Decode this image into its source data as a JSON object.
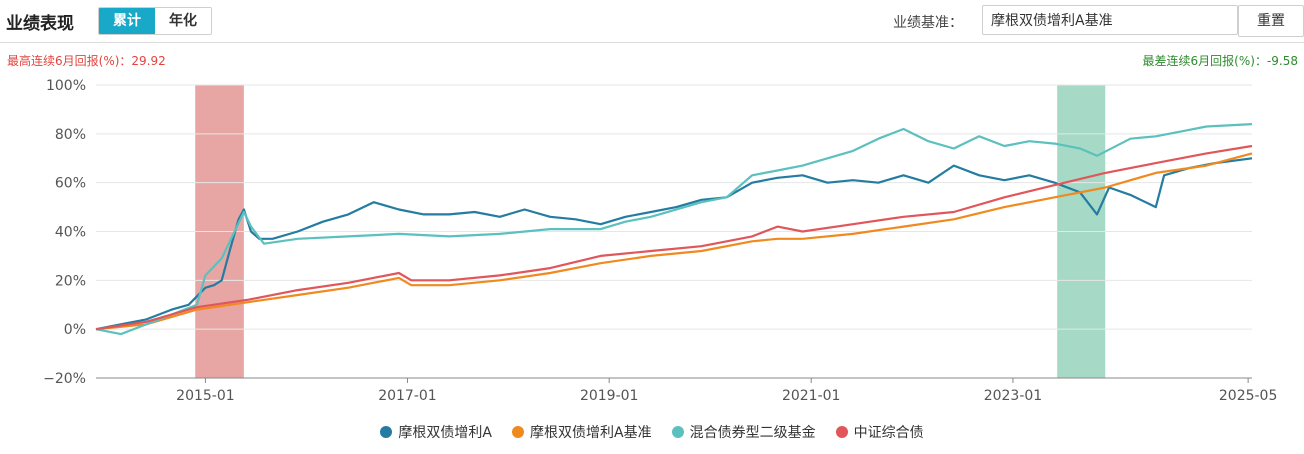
{
  "header": {
    "title": "业绩表现",
    "tabs": [
      {
        "label": "累计",
        "active": true
      },
      {
        "label": "年化",
        "active": false
      }
    ],
    "benchmark_label": "业绩基准：",
    "benchmark_value": "摩根双债增利A基准",
    "reset_label": "重置"
  },
  "stats": {
    "best_text": "最高连续6月回报(%)：29.92",
    "worst_text": "最差连续6月回报(%)：-9.58",
    "best_color": "#e2443f",
    "worst_color": "#2e8b2e"
  },
  "chart_data": {
    "type": "line",
    "x_range": [
      "2013-12-01",
      "2025-05-15"
    ],
    "x_ticks": [
      "2015-01",
      "2017-01",
      "2019-01",
      "2021-01",
      "2023-01",
      "2025-05"
    ],
    "y_ticks": [
      "100%",
      "80%",
      "60%",
      "40%",
      "20%",
      "0%",
      "−20%"
    ],
    "y_unit": "%",
    "ylim": [
      -20,
      100
    ],
    "grid": true,
    "legend_position": "bottom",
    "highlight_regions": [
      {
        "label": "best",
        "start": "2014-11-25",
        "end": "2015-05-20",
        "color": "#e6a19f"
      },
      {
        "label": "worst",
        "start": "2023-06-10",
        "end": "2023-12-01",
        "color": "#a2d8c3"
      }
    ],
    "series": [
      {
        "name": "摩根双债增利A",
        "color": "#247ca1",
        "points": [
          [
            "2013-12-01",
            0
          ],
          [
            "2014-03-01",
            2
          ],
          [
            "2014-06-01",
            4
          ],
          [
            "2014-09-01",
            8
          ],
          [
            "2014-11-01",
            10
          ],
          [
            "2015-01-01",
            17
          ],
          [
            "2015-02-01",
            18
          ],
          [
            "2015-03-01",
            20
          ],
          [
            "2015-04-01",
            33
          ],
          [
            "2015-05-01",
            45
          ],
          [
            "2015-05-20",
            49
          ],
          [
            "2015-06-15",
            40
          ],
          [
            "2015-07-15",
            37
          ],
          [
            "2015-09-01",
            37
          ],
          [
            "2015-12-01",
            40
          ],
          [
            "2016-03-01",
            44
          ],
          [
            "2016-06-01",
            47
          ],
          [
            "2016-09-01",
            52
          ],
          [
            "2016-12-01",
            49
          ],
          [
            "2017-03-01",
            47
          ],
          [
            "2017-06-01",
            47
          ],
          [
            "2017-09-01",
            48
          ],
          [
            "2017-12-01",
            46
          ],
          [
            "2018-03-01",
            49
          ],
          [
            "2018-06-01",
            46
          ],
          [
            "2018-09-01",
            45
          ],
          [
            "2018-12-01",
            43
          ],
          [
            "2019-03-01",
            46
          ],
          [
            "2019-06-01",
            48
          ],
          [
            "2019-09-01",
            50
          ],
          [
            "2019-12-01",
            53
          ],
          [
            "2020-03-01",
            54
          ],
          [
            "2020-06-01",
            60
          ],
          [
            "2020-09-01",
            62
          ],
          [
            "2020-12-01",
            63
          ],
          [
            "2021-03-01",
            60
          ],
          [
            "2021-06-01",
            61
          ],
          [
            "2021-09-01",
            60
          ],
          [
            "2021-12-01",
            63
          ],
          [
            "2022-03-01",
            60
          ],
          [
            "2022-06-01",
            67
          ],
          [
            "2022-09-01",
            63
          ],
          [
            "2022-12-01",
            61
          ],
          [
            "2023-03-01",
            63
          ],
          [
            "2023-06-01",
            60
          ],
          [
            "2023-09-01",
            56
          ],
          [
            "2023-11-01",
            47
          ],
          [
            "2023-12-15",
            58
          ],
          [
            "2024-03-01",
            55
          ],
          [
            "2024-06-01",
            50
          ],
          [
            "2024-07-01",
            63
          ],
          [
            "2024-10-01",
            66
          ],
          [
            "2025-01-01",
            68
          ],
          [
            "2025-05-15",
            70
          ]
        ]
      },
      {
        "name": "摩根双债增利A基准",
        "color": "#f08a1e",
        "points": [
          [
            "2013-12-01",
            0
          ],
          [
            "2014-06-01",
            2
          ],
          [
            "2014-12-01",
            8
          ],
          [
            "2015-06-01",
            11
          ],
          [
            "2015-12-01",
            14
          ],
          [
            "2016-06-01",
            17
          ],
          [
            "2016-12-01",
            21
          ],
          [
            "2017-01-15",
            18
          ],
          [
            "2017-06-01",
            18
          ],
          [
            "2017-12-01",
            20
          ],
          [
            "2018-06-01",
            23
          ],
          [
            "2018-12-01",
            27
          ],
          [
            "2019-06-01",
            30
          ],
          [
            "2019-12-01",
            32
          ],
          [
            "2020-06-01",
            36
          ],
          [
            "2020-09-01",
            37
          ],
          [
            "2020-12-01",
            37
          ],
          [
            "2021-06-01",
            39
          ],
          [
            "2021-12-01",
            42
          ],
          [
            "2022-06-01",
            45
          ],
          [
            "2022-12-01",
            50
          ],
          [
            "2023-06-01",
            54
          ],
          [
            "2023-12-01",
            58
          ],
          [
            "2024-06-01",
            64
          ],
          [
            "2024-12-01",
            67
          ],
          [
            "2025-05-15",
            72
          ]
        ]
      },
      {
        "name": "混合债券型二级基金",
        "color": "#5bc0be",
        "points": [
          [
            "2013-12-01",
            0
          ],
          [
            "2014-03-01",
            -2
          ],
          [
            "2014-06-01",
            2
          ],
          [
            "2014-09-01",
            6
          ],
          [
            "2014-12-01",
            10
          ],
          [
            "2015-01-01",
            22
          ],
          [
            "2015-03-01",
            29
          ],
          [
            "2015-05-20",
            48
          ],
          [
            "2015-06-15",
            42
          ],
          [
            "2015-08-01",
            35
          ],
          [
            "2015-12-01",
            37
          ],
          [
            "2016-06-01",
            38
          ],
          [
            "2016-12-01",
            39
          ],
          [
            "2017-06-01",
            38
          ],
          [
            "2017-12-01",
            39
          ],
          [
            "2018-06-01",
            41
          ],
          [
            "2018-12-01",
            41
          ],
          [
            "2019-03-01",
            44
          ],
          [
            "2019-06-01",
            46
          ],
          [
            "2019-12-01",
            52
          ],
          [
            "2020-03-01",
            54
          ],
          [
            "2020-06-01",
            63
          ],
          [
            "2020-09-01",
            65
          ],
          [
            "2020-12-01",
            67
          ],
          [
            "2021-03-01",
            70
          ],
          [
            "2021-06-01",
            73
          ],
          [
            "2021-09-01",
            78
          ],
          [
            "2021-12-01",
            82
          ],
          [
            "2022-03-01",
            77
          ],
          [
            "2022-06-01",
            74
          ],
          [
            "2022-09-01",
            79
          ],
          [
            "2022-12-01",
            75
          ],
          [
            "2023-03-01",
            77
          ],
          [
            "2023-06-01",
            76
          ],
          [
            "2023-09-01",
            74
          ],
          [
            "2023-11-01",
            71
          ],
          [
            "2024-03-01",
            78
          ],
          [
            "2024-06-01",
            79
          ],
          [
            "2024-09-01",
            81
          ],
          [
            "2024-12-01",
            83
          ],
          [
            "2025-05-15",
            84
          ]
        ]
      },
      {
        "name": "中证综合债",
        "color": "#e0565b",
        "points": [
          [
            "2013-12-01",
            0
          ],
          [
            "2014-06-01",
            3
          ],
          [
            "2014-12-01",
            9
          ],
          [
            "2015-06-01",
            12
          ],
          [
            "2015-12-01",
            16
          ],
          [
            "2016-06-01",
            19
          ],
          [
            "2016-12-01",
            23
          ],
          [
            "2017-01-15",
            20
          ],
          [
            "2017-06-01",
            20
          ],
          [
            "2017-12-01",
            22
          ],
          [
            "2018-06-01",
            25
          ],
          [
            "2018-12-01",
            30
          ],
          [
            "2019-06-01",
            32
          ],
          [
            "2019-12-01",
            34
          ],
          [
            "2020-06-01",
            38
          ],
          [
            "2020-09-01",
            42
          ],
          [
            "2020-12-01",
            40
          ],
          [
            "2021-06-01",
            43
          ],
          [
            "2021-12-01",
            46
          ],
          [
            "2022-06-01",
            48
          ],
          [
            "2022-12-01",
            54
          ],
          [
            "2023-06-01",
            59
          ],
          [
            "2023-12-01",
            64
          ],
          [
            "2024-06-01",
            68
          ],
          [
            "2024-12-01",
            72
          ],
          [
            "2025-05-15",
            75
          ]
        ]
      }
    ]
  }
}
